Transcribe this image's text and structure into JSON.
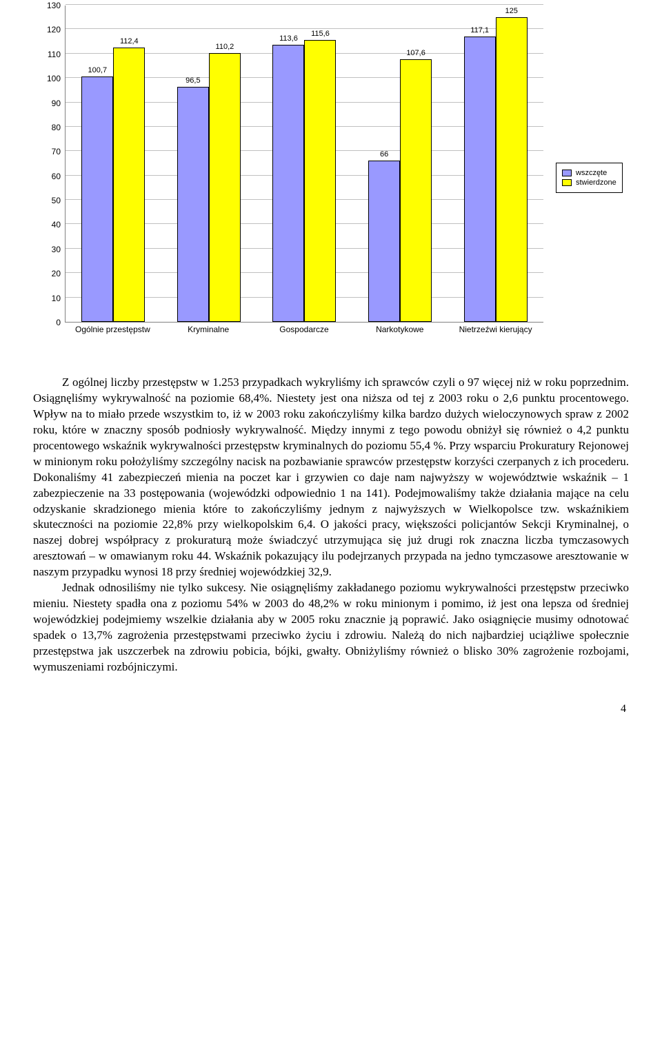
{
  "chart": {
    "type": "bar",
    "ymax": 130,
    "ymin": 0,
    "ytick_step": 10,
    "grid_color": "#c0c0c0",
    "axis_color": "#808080",
    "bar_border": "#000000",
    "series": [
      {
        "name": "wszczęte",
        "color": "#9999ff"
      },
      {
        "name": "stwierdzone",
        "color": "#ffff00"
      }
    ],
    "categories": [
      {
        "label": "Ogólnie przestępstw",
        "values": [
          100.7,
          112.4
        ]
      },
      {
        "label": "Kryminalne",
        "values": [
          96.5,
          110.2
        ]
      },
      {
        "label": "Gospodarcze",
        "values": [
          113.6,
          115.6
        ]
      },
      {
        "label": "Narkotykowe",
        "values": [
          66,
          107.6
        ]
      },
      {
        "label": "Nietrzeźwi kierujący",
        "values": [
          117.1,
          125
        ]
      }
    ],
    "legend_labels": [
      "wszczęte",
      "stwierdzone"
    ]
  },
  "text": {
    "p1_a": "Z ogólnej liczby przestępstw w 1.253 przypadkach wykryliśmy ich sprawców czyli o 97 więcej niż w roku poprzednim. Osiągnęliśmy wykrywalność na poziomie 68,4%. Niestety jest ona niższa od tej z 2003 roku o 2,6 punktu procentowego. Wpływ na to miało przede wszystkim to, iż w 2003 roku zakończyliśmy kilka bardzo dużych wieloczynowych spraw z 2002 roku, które w znaczny sposób podniosły wykrywalność. Między innymi z tego powodu obniżył się również o 4,2 punktu procentowego wskaźnik wykrywalności przestępstw kryminalnych do poziomu 55,4 %. Przy wsparciu Prokuratury Rejonowej w minionym roku położyliśmy szczególny nacisk na pozbawianie sprawców przestępstw korzyści czerpanych z ich procederu. Dokonaliśmy 41 zabezpieczeń mienia na poczet kar i grzywien co daje nam najwyższy w województwie wskaźnik – 1 zabezpieczenie na 33 postępowania (wojewódzki odpowiednio 1 na 141). Podejmowaliśmy także działania mające na celu odzyskanie skradzionego mienia które to zakończyliśmy jednym z najwyższych w Wielkopolsce tzw. wskaźnikiem skuteczności na poziomie 22,8% przy wielkopolskim 6,4. O jakości pracy, większości policjantów Sekcji Kryminalnej, o naszej dobrej współpracy z prokuraturą może świadczyć utrzymująca się już drugi rok znaczna liczba tymczasowych aresztowań – w omawianym roku 44. Wskaźnik pokazujący ilu podejrzanych przypada na jedno tymczasowe aresztowanie w naszym przypadku wynosi 18 przy średniej wojewódzkiej 32,9.",
    "p2_a": "Jednak odnosiliśmy nie tylko sukcesy. Nie osiągnęliśmy zakładanego poziomu wykrywalności przestępstw przeciwko mieniu. Niestety spadła ona z poziomu 54% w 2003 do 48,2% w roku minionym i pomimo, iż jest ona lepsza od średniej wojewódzkiej podejmiemy wszelkie działania aby w 2005 roku znacznie ją poprawić. Jako osiągnięcie musimy odnotować spadek o 13,7% zagrożenia przestępstwami przeciwko życiu i zdrowiu. Należą do nich najbardziej uciążliwe społecznie przestępstwa jak uszczerbek na zdrowiu pobicia, bójki, gwałty. Obniżyliśmy również o blisko 30% zagrożenie rozbojami, wymuszeniami rozbójniczymi."
  },
  "page_number": "4"
}
